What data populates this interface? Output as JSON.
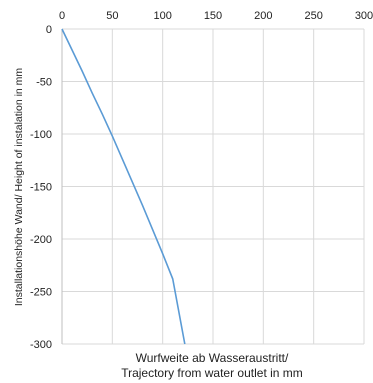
{
  "chart_data": {
    "type": "line",
    "title": "",
    "xlabel_lines": [
      "Wurfweite ab Wasseraustritt/",
      "Trajectory from water outlet in mm"
    ],
    "ylabel": "Installationshöhe Wand/ Height of instalation  in mm",
    "xlim": [
      0,
      300
    ],
    "ylim": [
      -300,
      0
    ],
    "x_ticks": [
      0,
      50,
      100,
      150,
      200,
      250,
      300
    ],
    "y_ticks": [
      0,
      -50,
      -100,
      -150,
      -200,
      -250,
      -300
    ],
    "x_axis_position": "top",
    "grid": true,
    "legend": "none",
    "series": [
      {
        "color": "#5b9bd5",
        "points": [
          [
            0,
            0
          ],
          [
            10,
            -20
          ],
          [
            20,
            -40
          ],
          [
            30,
            -61
          ],
          [
            40,
            -81
          ],
          [
            50,
            -102
          ],
          [
            60,
            -124
          ],
          [
            70,
            -146
          ],
          [
            80,
            -168
          ],
          [
            90,
            -191
          ],
          [
            100,
            -214
          ],
          [
            110,
            -238
          ],
          [
            122,
            -300
          ]
        ]
      }
    ]
  }
}
